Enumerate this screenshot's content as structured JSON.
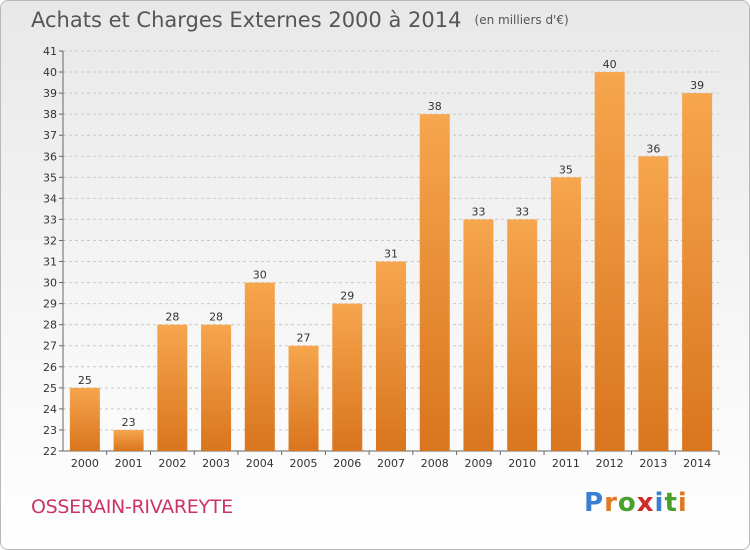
{
  "title": "Achats et Charges Externes 2000 à 2014",
  "subtitle": "(en milliers d'€)",
  "commune": "OSSERAIN-RIVAREYTE",
  "logo": {
    "text": "Proxiti",
    "letters": [
      "P",
      "r",
      "o",
      "x",
      "i",
      "t",
      "i"
    ],
    "colors": [
      "#3a7fd0",
      "#e07a20",
      "#4aa02c",
      "#d02a2a",
      "#3a7fd0",
      "#4aa02c",
      "#e07a20"
    ]
  },
  "colors": {
    "bar_top": "#f6a64e",
    "bar_bottom": "#d9751e",
    "accent": "#cc3366",
    "grid": "#c9c9c9"
  },
  "chart_data": {
    "type": "bar",
    "title": "Achats et Charges Externes 2000 à 2014",
    "subtitle": "(en milliers d'€)",
    "categories": [
      "2000",
      "2001",
      "2002",
      "2003",
      "2004",
      "2005",
      "2006",
      "2007",
      "2008",
      "2009",
      "2010",
      "2011",
      "2012",
      "2013",
      "2014"
    ],
    "values": [
      25,
      23,
      28,
      28,
      30,
      27,
      29,
      31,
      38,
      33,
      33,
      35,
      40,
      36,
      39
    ],
    "ylim": [
      22,
      41
    ],
    "yticks": [
      22,
      23,
      24,
      25,
      26,
      27,
      28,
      29,
      30,
      31,
      32,
      33,
      34,
      35,
      36,
      37,
      38,
      39,
      40,
      41
    ],
    "grid": true,
    "xlabel": "",
    "ylabel": ""
  }
}
